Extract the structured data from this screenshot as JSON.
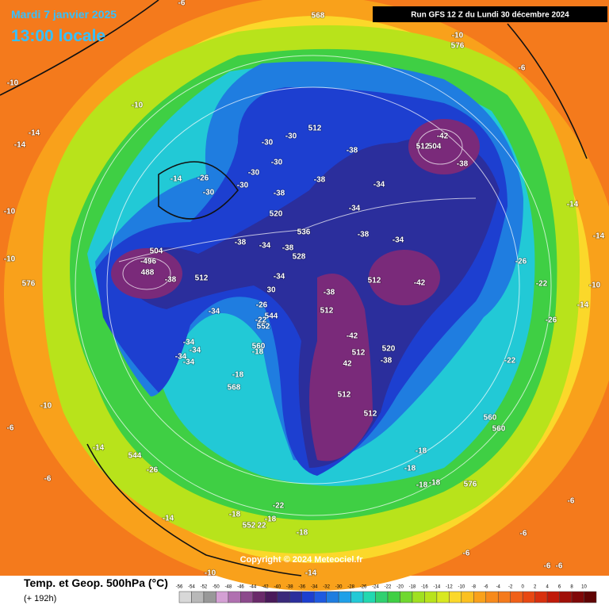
{
  "header": {
    "date": "Mardi 7 janvier 2025",
    "time": "13:00 locale",
    "run": "Run GFS 12 Z du Lundi 30 décembre 2024"
  },
  "copyright": "Copyright © 2024 Meteociel.fr",
  "legend": {
    "title": "Temp. et Geop. 500hPa (°C)",
    "subtitle": "(+ 192h)",
    "scale": [
      -56,
      -54,
      -52,
      -50,
      -48,
      -46,
      -44,
      -42,
      -40,
      -38,
      -36,
      -34,
      -32,
      -30,
      -28,
      -26,
      -24,
      -22,
      -20,
      -18,
      -16,
      -14,
      -12,
      -10,
      -8,
      -6,
      -4,
      -2,
      0,
      2,
      4,
      6,
      8,
      10
    ]
  },
  "map_labels": [
    -42,
    -38,
    -30,
    -30,
    512,
    504,
    512,
    -38,
    -34,
    -38,
    -38,
    -34,
    520,
    536,
    -38,
    -34,
    -38,
    -34,
    -38,
    528,
    504,
    -496,
    488,
    -38,
    512,
    -34,
    30,
    512,
    -42,
    -38,
    512,
    -42,
    512,
    520,
    -38,
    42,
    512,
    512,
    -14,
    -10,
    -14,
    -14,
    568,
    576,
    -10,
    -6,
    -14,
    -14,
    -26,
    -22,
    -10,
    -14,
    -26,
    -22,
    560,
    560,
    576,
    -18,
    -18,
    -18,
    -18,
    -6,
    -6,
    -6,
    -6,
    -6,
    -10,
    -14,
    -18,
    -18,
    552,
    22,
    -22,
    -18,
    -14,
    -14,
    544,
    -26,
    -10,
    -6,
    -6,
    -10,
    -10,
    576,
    -10,
    -6,
    -34,
    -34,
    -34,
    -34,
    -34,
    -26,
    544,
    -22,
    552,
    560,
    -18,
    -18,
    568,
    -30,
    -30,
    -30,
    -30,
    -26
  ]
}
